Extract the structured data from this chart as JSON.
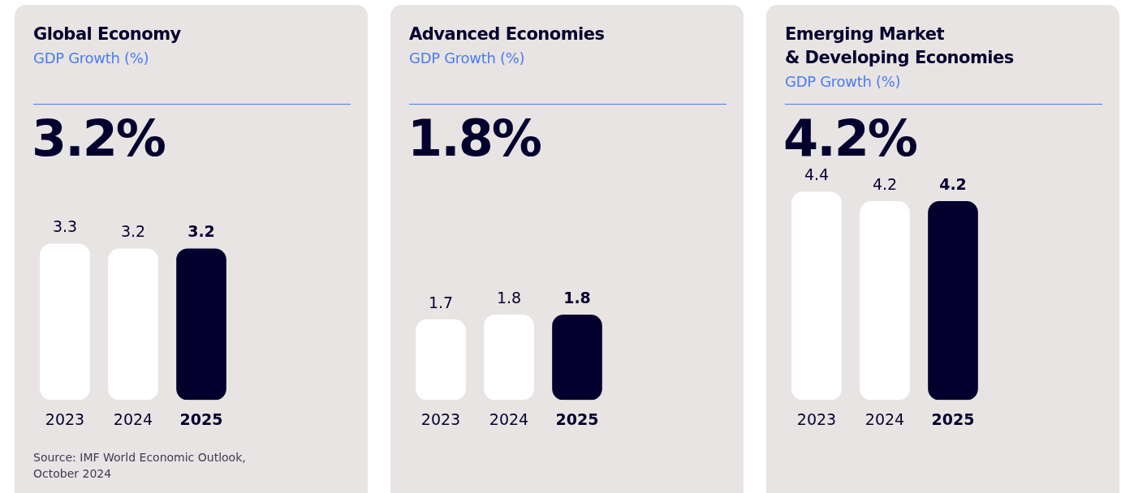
{
  "chart_data": [
    {
      "type": "bar",
      "title": "Global Economy",
      "subtitle": "GDP Growth (%)",
      "categories": [
        "2023",
        "2024",
        "2025"
      ],
      "values": [
        3.3,
        3.2,
        3.2
      ],
      "colors": [
        "#ffffff",
        "#ffffff",
        "#03002e"
      ],
      "data_labels": true,
      "annotations": [
        "3.2%",
        "Source: IMF World Economic Outlook,\nOctober 2024"
      ]
    },
    {
      "type": "bar",
      "title": "Advanced Economies",
      "subtitle": "GDP Growth (%)",
      "categories": [
        "2023",
        "2024",
        "2025"
      ],
      "values": [
        1.7,
        1.8,
        1.8
      ],
      "colors": [
        "#ffffff",
        "#ffffff",
        "#03002e"
      ],
      "data_labels": true,
      "annotations": [
        "1.8%"
      ]
    },
    {
      "type": "bar",
      "title": "Emerging Market\n& Developing Economies",
      "subtitle": "GDP Growth (%)",
      "categories": [
        "2023",
        "2024",
        "2025"
      ],
      "values": [
        4.4,
        4.2,
        4.2
      ],
      "colors": [
        "#ffffff",
        "#ffffff",
        "#03002e"
      ],
      "data_labels": true,
      "annotations": [
        "4.2%"
      ]
    }
  ]
}
